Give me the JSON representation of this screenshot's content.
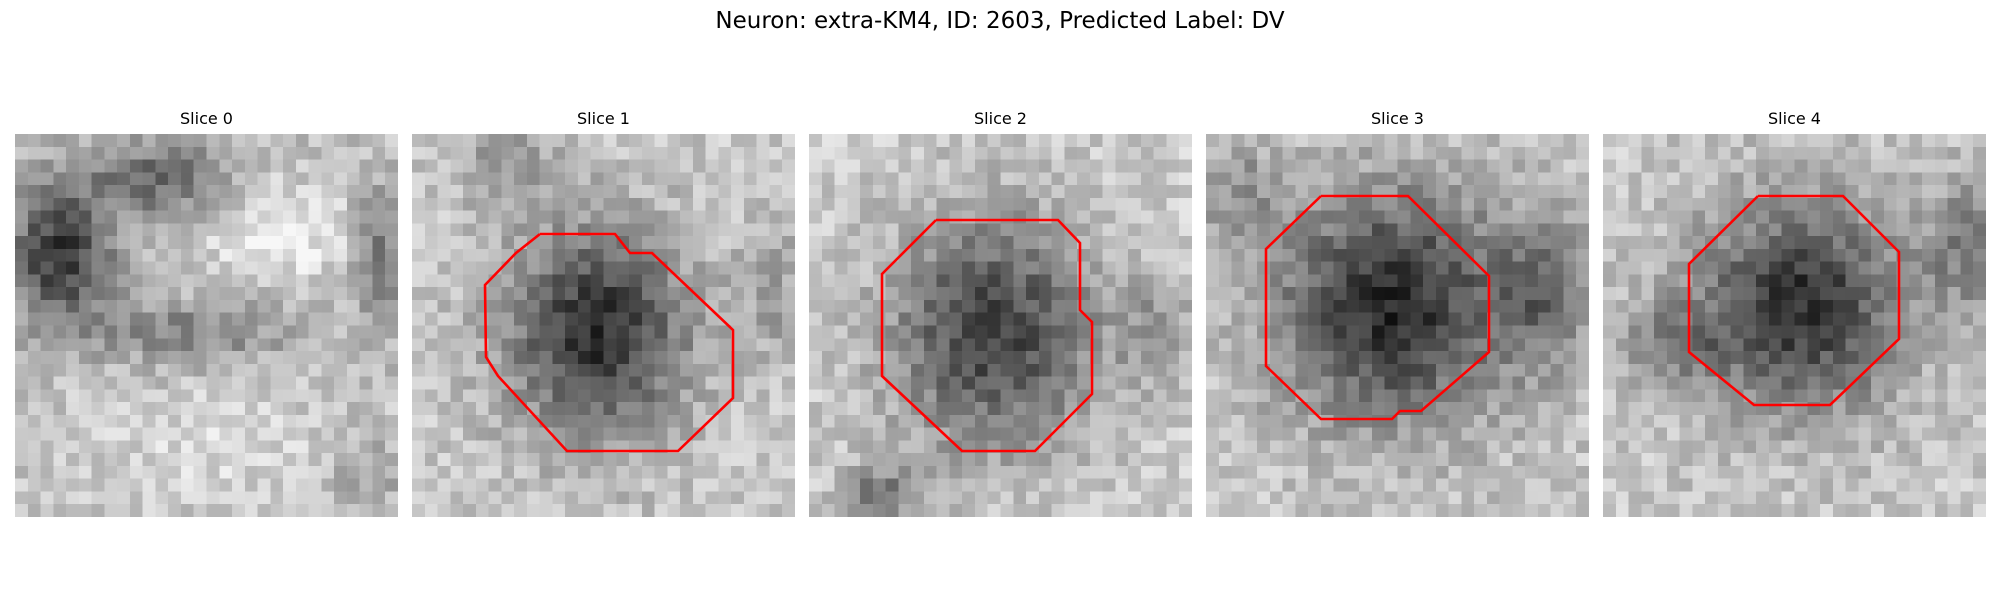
{
  "figure": {
    "title": "Neuron: extra-KM4, ID: 2603, Predicted Label: DV"
  },
  "panels": [
    {
      "label": "Slice 0",
      "has_contour": false
    },
    {
      "label": "Slice 1",
      "has_contour": true
    },
    {
      "label": "Slice 2",
      "has_contour": true
    },
    {
      "label": "Slice 3",
      "has_contour": true
    },
    {
      "label": "Slice 4",
      "has_contour": true
    }
  ],
  "colors": {
    "contour": "#ff0000",
    "background": "#ffffff"
  }
}
